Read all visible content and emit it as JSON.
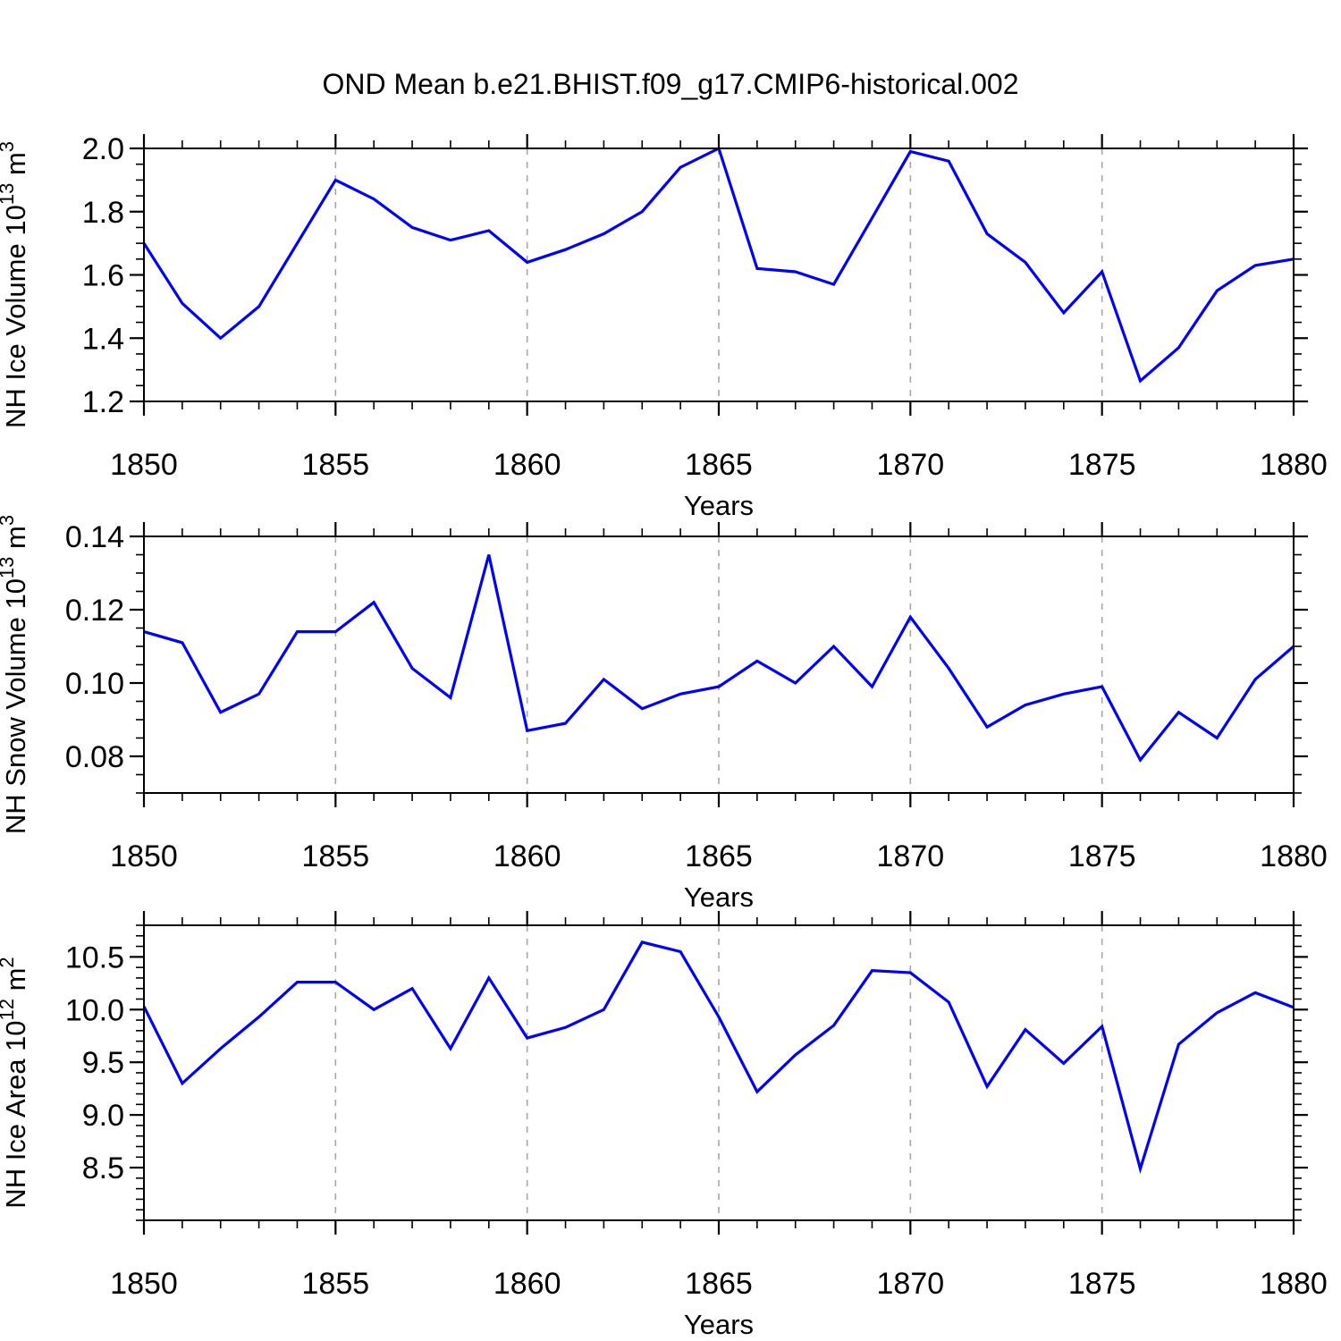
{
  "title": "OND Mean b.e21.BHIST.f09_g17.CMIP6-historical.002",
  "colors": {
    "line": "#0000ff",
    "grid": "#a6a6a6",
    "axis": "#000000"
  },
  "x_axis": {
    "label": "Years",
    "start": 1850,
    "end": 1880,
    "major_tick_years": [
      1850,
      1855,
      1860,
      1865,
      1870,
      1875,
      1880
    ],
    "gridline_years": [
      1855,
      1860,
      1865,
      1870,
      1875
    ]
  },
  "x": [
    1850,
    1851,
    1852,
    1853,
    1854,
    1855,
    1856,
    1857,
    1858,
    1859,
    1860,
    1861,
    1862,
    1863,
    1864,
    1865,
    1866,
    1867,
    1868,
    1869,
    1870,
    1871,
    1872,
    1873,
    1874,
    1875,
    1876,
    1877,
    1878,
    1879,
    1880
  ],
  "chart_data": [
    {
      "type": "line",
      "series_name": "NH Ice Volume",
      "ylabel": "NH Ice Volume 10^13 m^3",
      "xlabel": "Years",
      "ylim": [
        1.2,
        2.0
      ],
      "ytick_values": [
        1.2,
        1.4,
        1.6,
        1.8,
        2.0
      ],
      "ytick_labels": [
        "1.2",
        "1.4",
        "1.6",
        "1.8",
        "2.0"
      ],
      "minor_tick_step": 0.05,
      "grid": "vertical-dashed",
      "legend": "none",
      "values": [
        1.7,
        1.51,
        1.4,
        1.5,
        1.7,
        1.9,
        1.84,
        1.75,
        1.71,
        1.74,
        1.64,
        1.68,
        1.73,
        1.8,
        1.94,
        2.0,
        1.62,
        1.61,
        1.57,
        1.78,
        1.99,
        1.96,
        1.73,
        1.64,
        1.48,
        1.61,
        1.265,
        1.37,
        1.55,
        1.63,
        1.65
      ]
    },
    {
      "type": "line",
      "series_name": "NH Snow Volume",
      "ylabel": "NH Snow Volume 10^13 m^3",
      "xlabel": "Years",
      "ylim": [
        0.07,
        0.14
      ],
      "ytick_values": [
        0.08,
        0.1,
        0.12,
        0.14
      ],
      "ytick_labels": [
        "0.08",
        "0.10",
        "0.12",
        "0.14"
      ],
      "minor_tick_step": 0.005,
      "grid": "vertical-dashed",
      "legend": "none",
      "values": [
        0.114,
        0.111,
        0.092,
        0.097,
        0.114,
        0.114,
        0.122,
        0.104,
        0.096,
        0.135,
        0.087,
        0.089,
        0.101,
        0.093,
        0.097,
        0.099,
        0.106,
        0.1,
        0.11,
        0.099,
        0.118,
        0.104,
        0.088,
        0.094,
        0.097,
        0.099,
        0.079,
        0.092,
        0.085,
        0.101,
        0.11
      ]
    },
    {
      "type": "line",
      "series_name": "NH Ice Area",
      "ylabel": "NH Ice Area 10^12 m^2",
      "xlabel": "Years",
      "ylim": [
        8.0,
        10.8
      ],
      "ytick_values": [
        8.5,
        9.0,
        9.5,
        10.0,
        10.5
      ],
      "ytick_labels": [
        "8.5",
        "9.0",
        "9.5",
        "10.0",
        "10.5"
      ],
      "minor_tick_step": 0.1,
      "grid": "vertical-dashed",
      "legend": "none",
      "values": [
        10.03,
        9.3,
        9.63,
        9.93,
        10.26,
        10.26,
        10.0,
        10.2,
        9.63,
        10.3,
        9.73,
        9.83,
        10.0,
        10.64,
        10.55,
        9.93,
        9.22,
        9.57,
        9.85,
        10.37,
        10.35,
        10.07,
        9.27,
        9.81,
        9.49,
        9.84,
        8.49,
        9.67,
        9.97,
        10.16,
        10.02
      ]
    }
  ]
}
